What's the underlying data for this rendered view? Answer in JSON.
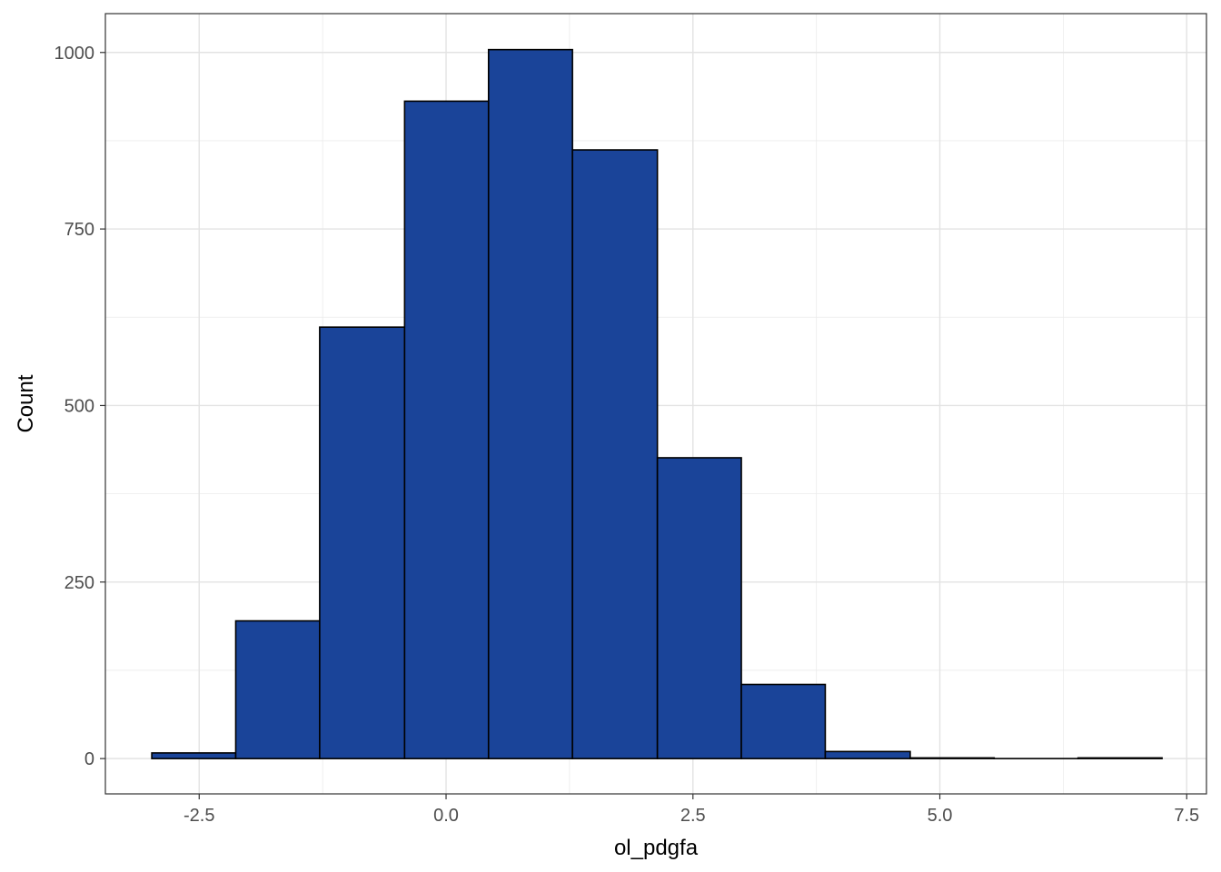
{
  "chart_data": {
    "type": "bar",
    "xlabel": "ol_pdgfa",
    "ylabel": "Count",
    "xlim": [
      -3.45,
      7.7
    ],
    "ylim": [
      -50,
      1055
    ],
    "x_ticks": [
      -2.5,
      0.0,
      2.5,
      5.0,
      7.5
    ],
    "x_tick_labels": [
      "-2.5",
      "0.0",
      "2.5",
      "5.0",
      "7.5"
    ],
    "y_ticks": [
      0,
      250,
      500,
      750,
      1000
    ],
    "y_tick_labels": [
      "0",
      "250",
      "500",
      "750",
      "1000"
    ],
    "bins": [
      {
        "x0": -2.98,
        "x1": -2.13,
        "count": 8
      },
      {
        "x0": -2.13,
        "x1": -1.28,
        "count": 195
      },
      {
        "x0": -1.28,
        "x1": -0.42,
        "count": 611
      },
      {
        "x0": -0.42,
        "x1": 0.43,
        "count": 931
      },
      {
        "x0": 0.43,
        "x1": 1.28,
        "count": 1004
      },
      {
        "x0": 1.28,
        "x1": 2.14,
        "count": 862
      },
      {
        "x0": 2.14,
        "x1": 2.99,
        "count": 426
      },
      {
        "x0": 2.99,
        "x1": 3.84,
        "count": 105
      },
      {
        "x0": 3.84,
        "x1": 4.7,
        "count": 10
      },
      {
        "x0": 4.7,
        "x1": 5.55,
        "count": 1
      },
      {
        "x0": 5.55,
        "x1": 6.4,
        "count": 0
      },
      {
        "x0": 6.4,
        "x1": 7.25,
        "count": 1
      }
    ],
    "fill_color": "#1a4499",
    "outline_color": "#000000",
    "grid": true,
    "legend": "none"
  }
}
